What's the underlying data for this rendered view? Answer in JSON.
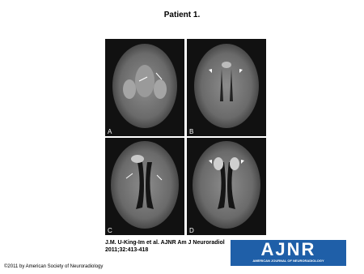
{
  "header": {
    "title": "Patient 1."
  },
  "figure": {
    "panels": [
      {
        "label": "A"
      },
      {
        "label": "B"
      },
      {
        "label": "C"
      },
      {
        "label": "D"
      }
    ]
  },
  "citation": "J.M. U-King-Im et al. AJNR Am J Neuroradiol 2011;32:413-418",
  "logo": {
    "title": "AJNR",
    "subtitle": "AMERICAN JOURNAL OF NEURORADIOLOGY"
  },
  "copyright": "©2011 by American Society of Neuroradiology"
}
